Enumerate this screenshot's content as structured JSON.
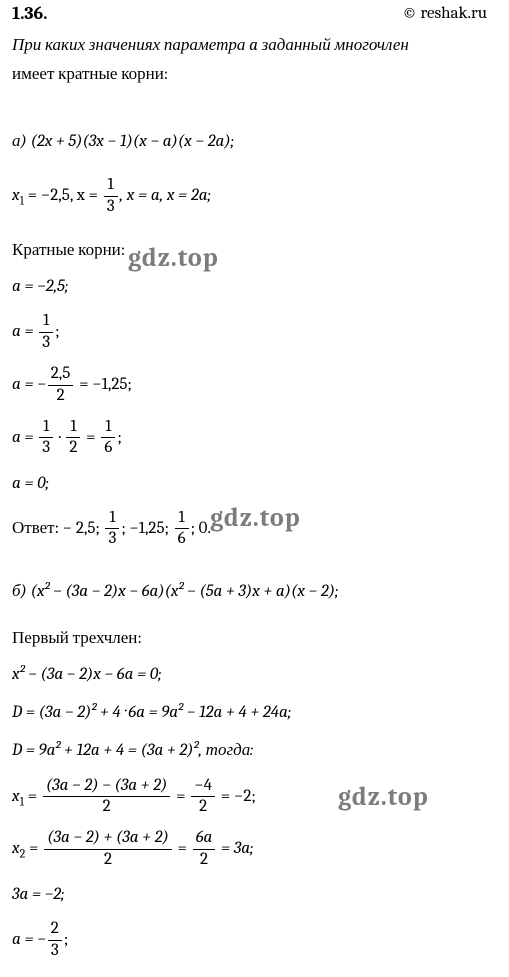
{
  "header": {
    "number": "1.36.",
    "copyright": "© reshak.ru"
  },
  "question": {
    "line1": "При каких значениях параметра a заданный многочлен",
    "line2": "имеет кратные корни:"
  },
  "partA": {
    "label": "а) (2x + 5)(3x − 1)(x − a)(x − 2a);",
    "roots_prefix": "x",
    "roots_sub": "1",
    "roots_eq": " = −2,5,   x = ",
    "roots_frac_num": "1",
    "roots_frac_den": "3",
    "roots_suffix": ",   x = a,   x = 2a;",
    "multi_label": "Кратные корни:",
    "a1": "a = −2,5;",
    "a2_prefix": "a = ",
    "a2_num": "1",
    "a2_den": "3",
    "a2_suffix": ";",
    "a3_prefix": "a = −",
    "a3_num": "2,5",
    "a3_den": "2",
    "a3_suffix": " = −1,25;",
    "a4_prefix": "a = ",
    "a4_f1_num": "1",
    "a4_f1_den": "3",
    "a4_mid": " · ",
    "a4_f2_num": "1",
    "a4_f2_den": "2",
    "a4_eq": " = ",
    "a4_f3_num": "1",
    "a4_f3_den": "6",
    "a4_suffix": ";",
    "a5": "a = 0;",
    "ans_prefix": "Ответ:  − 2,5; ",
    "ans_f1_num": "1",
    "ans_f1_den": "3",
    "ans_mid1": ";  −1,25; ",
    "ans_f2_num": "1",
    "ans_f2_den": "6",
    "ans_suffix": ";  0."
  },
  "partB": {
    "label": "б) (x² − (3a − 2)x − 6a)(x² − (5a + 3)x + a)(x − 2);",
    "tri_label": "Первый трехчлен:",
    "eq1": "x² − (3a − 2)x − 6a = 0;",
    "disc1": "D = (3a − 2)² + 4 · 6a = 9a² − 12a + 4 + 24a;",
    "disc2": "D = 9a² + 12a + 4 = (3a + 2)², тогда:",
    "x1_prefix": "x",
    "x1_sub": "1",
    "x1_eq": " = ",
    "x1_f1_num": "(3a − 2) − (3a + 2)",
    "x1_f1_den": "2",
    "x1_mid": " = ",
    "x1_f2_num": "−4",
    "x1_f2_den": "2",
    "x1_suffix": " = −2;",
    "x2_prefix": "x",
    "x2_sub": "2",
    "x2_eq": " = ",
    "x2_f1_num": "(3a − 2) + (3a + 2)",
    "x2_f1_den": "2",
    "x2_mid": " = ",
    "x2_f2_num": "6a",
    "x2_f2_den": "2",
    "x2_suffix": " = 3a;",
    "eq_3a": "3a = −2;",
    "afin_prefix": "a = −",
    "afin_num": "2",
    "afin_den": "3",
    "afin_suffix": ";"
  },
  "watermarks": {
    "text": "gdz.top"
  },
  "colors": {
    "bg": "#ffffff",
    "text": "#000000",
    "wm": "#4a4a4a"
  }
}
